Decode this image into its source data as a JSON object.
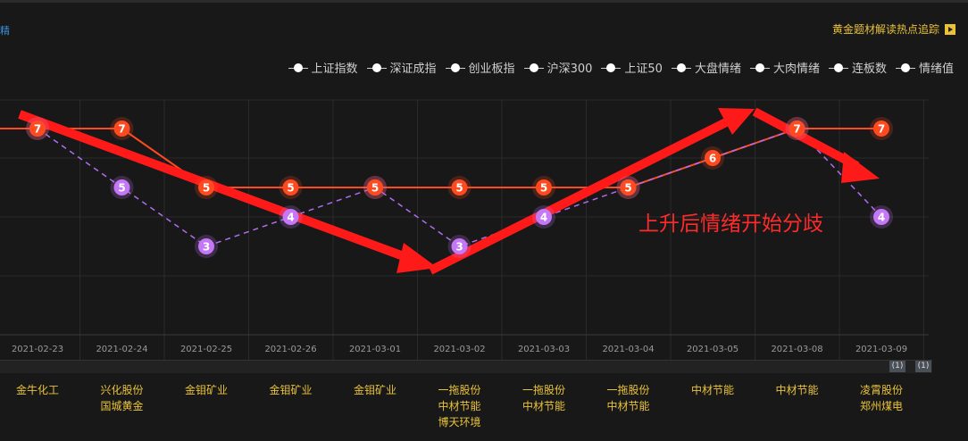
{
  "header": {
    "left_label": "精",
    "right_title": "黄金题材解读热点追踪",
    "play_icon": "play-icon"
  },
  "legend": [
    "上证指数",
    "深证成指",
    "创业板指",
    "沪深300",
    "上证50",
    "大盘情绪",
    "大肉情绪",
    "连板数",
    "情绪值"
  ],
  "chart_data": {
    "type": "line",
    "categories": [
      "2021-02-23",
      "2021-02-24",
      "2021-02-25",
      "2021-02-26",
      "2021-03-01",
      "2021-03-02",
      "2021-03-03",
      "2021-03-04",
      "2021-03-05",
      "2021-03-08",
      "2021-03-09"
    ],
    "ylim": [
      0,
      8
    ],
    "grid": true,
    "series": [
      {
        "values": [
          7,
          7,
          5,
          5,
          5,
          5,
          5,
          5,
          6,
          7,
          7
        ],
        "color": "#ff4a1f",
        "style": "solid"
      },
      {
        "values": [
          7,
          5,
          3,
          4,
          5,
          3,
          4,
          5,
          null,
          7,
          4
        ],
        "color": "#b06cf0",
        "style": "dashed"
      }
    ],
    "annotations": [
      "上升后情绪开始分歧"
    ]
  },
  "scroll_labels": [
    "(1)",
    "(1)"
  ],
  "stocks": [
    [
      "金牛化工"
    ],
    [
      "兴化股份",
      "国城黄金"
    ],
    [
      "金钼矿业"
    ],
    [
      "金钼矿业"
    ],
    [
      "金钼矿业"
    ],
    [
      "一拖股份",
      "中材节能",
      "博天环境"
    ],
    [
      "一拖股份",
      "中材节能"
    ],
    [
      "一拖股份",
      "中材节能"
    ],
    [
      "中材节能"
    ],
    [
      "中材节能"
    ],
    [
      "凌霄股份",
      "郑州煤电"
    ]
  ]
}
